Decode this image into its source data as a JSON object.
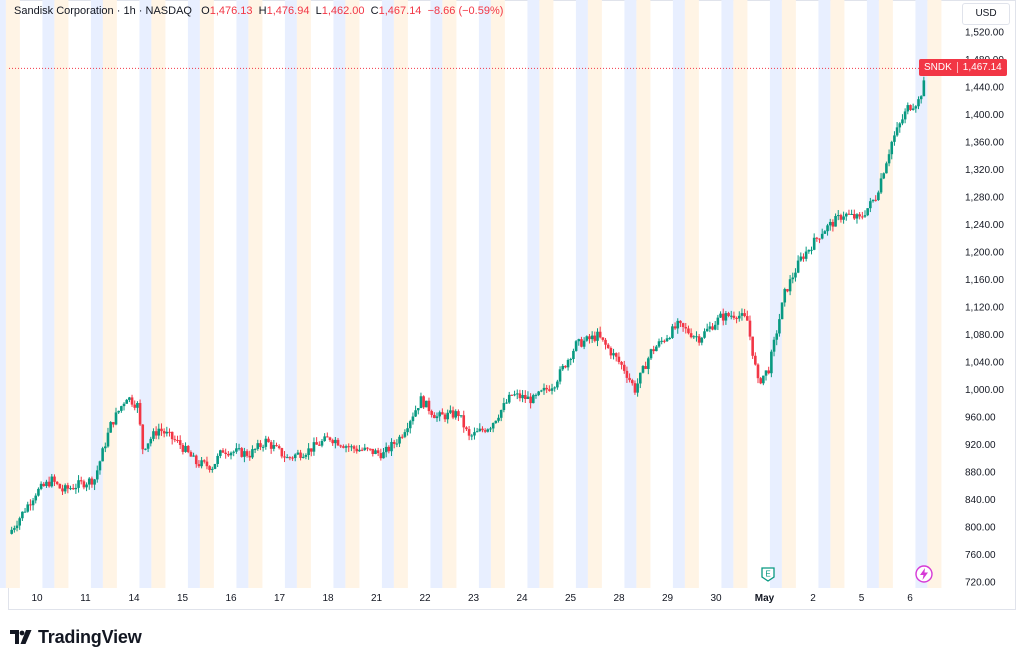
{
  "legend": {
    "symbol_name": "Sandisk Corporation",
    "interval": "1h",
    "exchange": "NASDAQ",
    "open_label": "O",
    "open": "1,476.13",
    "high_label": "H",
    "high": "1,476.94",
    "low_label": "L",
    "low": "1,462.00",
    "close_label": "C",
    "close": "1,467.14",
    "change": "−8.66 (−0.59%)"
  },
  "currency": "USD",
  "last_price_badge": {
    "ticker": "SNDK",
    "price": "1,467.14"
  },
  "events": {
    "earnings_letter": "E",
    "dividend_icon": "flash-icon"
  },
  "logo": {
    "brand": "TradingView"
  },
  "colors": {
    "up": "#089981",
    "down": "#f23645",
    "session_pre": "#fff4e5",
    "session_post": "#e8efff",
    "last_price_line": "#f23645"
  },
  "chart_data": {
    "type": "candlestick",
    "title": "Sandisk Corporation · 1h · NASDAQ",
    "ylim": [
      720,
      1540
    ],
    "y_ticks": [
      "1,520.00",
      "1,480.00",
      "1,440.00",
      "1,400.00",
      "1,360.00",
      "1,320.00",
      "1,280.00",
      "1,240.00",
      "1,200.00",
      "1,160.00",
      "1,120.00",
      "1,080.00",
      "1,040.00",
      "1,000.00",
      "960.00",
      "920.00",
      "880.00",
      "840.00",
      "800.00",
      "760.00",
      "720.00"
    ],
    "x_ticks": [
      "10",
      "11",
      "14",
      "15",
      "16",
      "17",
      "18",
      "21",
      "22",
      "23",
      "24",
      "25",
      "28",
      "29",
      "30",
      "May",
      "2",
      "5",
      "6"
    ],
    "last_price": 1467.14,
    "grid": false,
    "sessions_per_day": 16,
    "close_path": [
      {
        "session": 0,
        "close": 790
      },
      {
        "session": 10,
        "close": 850
      },
      {
        "session": 16,
        "close": 868
      },
      {
        "session": 20,
        "close": 853
      },
      {
        "session": 32,
        "close": 870
      },
      {
        "session": 38,
        "close": 948
      },
      {
        "session": 44,
        "close": 990
      },
      {
        "session": 48,
        "close": 977
      },
      {
        "session": 50,
        "close": 915
      },
      {
        "session": 56,
        "close": 943
      },
      {
        "session": 64,
        "close": 920
      },
      {
        "session": 70,
        "close": 893
      },
      {
        "session": 76,
        "close": 888
      },
      {
        "session": 80,
        "close": 912
      },
      {
        "session": 90,
        "close": 906
      },
      {
        "session": 96,
        "close": 925
      },
      {
        "session": 104,
        "close": 900
      },
      {
        "session": 112,
        "close": 912
      },
      {
        "session": 120,
        "close": 930
      },
      {
        "session": 128,
        "close": 915
      },
      {
        "session": 135,
        "close": 910
      },
      {
        "session": 140,
        "close": 906
      },
      {
        "session": 146,
        "close": 930
      },
      {
        "session": 154,
        "close": 985
      },
      {
        "session": 160,
        "close": 960
      },
      {
        "session": 168,
        "close": 965
      },
      {
        "session": 172,
        "close": 930
      },
      {
        "session": 180,
        "close": 948
      },
      {
        "session": 188,
        "close": 992
      },
      {
        "session": 196,
        "close": 985
      },
      {
        "session": 204,
        "close": 1010
      },
      {
        "session": 212,
        "close": 1065
      },
      {
        "session": 220,
        "close": 1078
      },
      {
        "session": 226,
        "close": 1050
      },
      {
        "session": 230,
        "close": 1030
      },
      {
        "session": 234,
        "close": 1000
      },
      {
        "session": 240,
        "close": 1055
      },
      {
        "session": 250,
        "close": 1093
      },
      {
        "session": 258,
        "close": 1075
      },
      {
        "session": 266,
        "close": 1105
      },
      {
        "session": 272,
        "close": 1110
      },
      {
        "session": 276,
        "close": 1100
      },
      {
        "session": 280,
        "close": 1010
      },
      {
        "session": 284,
        "close": 1030
      },
      {
        "session": 290,
        "close": 1140
      },
      {
        "session": 296,
        "close": 1190
      },
      {
        "session": 304,
        "close": 1230
      },
      {
        "session": 312,
        "close": 1255
      },
      {
        "session": 318,
        "close": 1248
      },
      {
        "session": 324,
        "close": 1280
      },
      {
        "session": 330,
        "close": 1360
      },
      {
        "session": 336,
        "close": 1410
      },
      {
        "session": 340,
        "close": 1420
      },
      {
        "session": 344,
        "close": 1467.14
      }
    ]
  }
}
